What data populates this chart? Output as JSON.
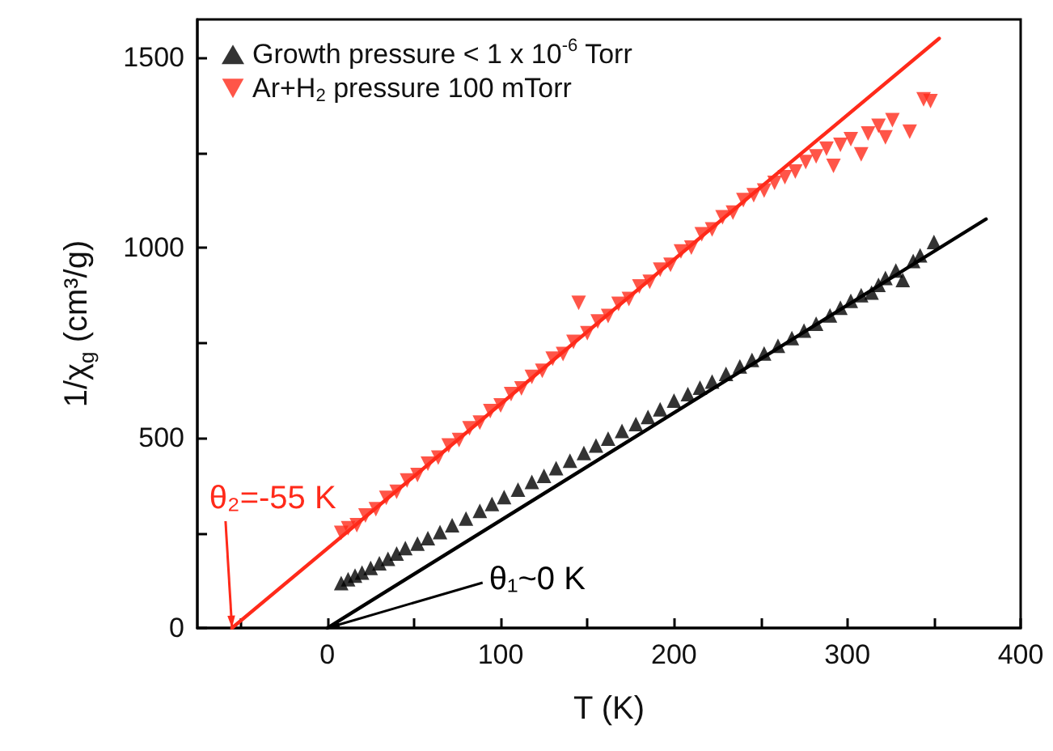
{
  "chart_data": {
    "type": "scatter",
    "xlabel": "T (K)",
    "ylabel": "1/χ$_{g}$ (cm³/g)",
    "xlim": [
      -75,
      400
    ],
    "ylim": [
      0,
      1600
    ],
    "xticks": [
      {
        "value": -50,
        "label": null
      },
      0,
      {
        "value": 50,
        "label": null
      },
      100,
      {
        "value": 150,
        "label": null
      },
      200,
      {
        "value": 250,
        "label": null
      },
      300,
      {
        "value": 350,
        "label": null
      },
      400
    ],
    "yticks": [
      0,
      {
        "value": 250,
        "label": null
      },
      500,
      {
        "value": 750,
        "label": null
      },
      1000,
      {
        "value": 1250,
        "label": null
      },
      1500
    ],
    "legend": "top left",
    "grid": false,
    "marker": "triangle",
    "series": [
      {
        "name": "Growth pressure < 1 x 10$^{-6}$ Torr",
        "color": "#000000",
        "x": [
          8,
          12,
          16,
          20,
          25,
          30,
          35,
          40,
          45,
          52,
          58,
          65,
          72,
          80,
          88,
          95,
          102,
          110,
          118,
          125,
          132,
          140,
          148,
          155,
          162,
          170,
          178,
          185,
          192,
          200,
          208,
          215,
          222,
          230,
          238,
          245,
          252,
          260,
          268,
          275,
          282,
          290,
          296,
          302,
          308,
          314,
          318,
          322,
          328,
          332,
          338,
          342,
          350
        ],
        "values": [
          118,
          128,
          138,
          146,
          158,
          170,
          182,
          196,
          210,
          222,
          236,
          252,
          270,
          288,
          308,
          326,
          344,
          364,
          384,
          400,
          420,
          440,
          460,
          480,
          498,
          518,
          536,
          555,
          575,
          598,
          615,
          632,
          648,
          668,
          688,
          705,
          722,
          742,
          762,
          782,
          800,
          822,
          842,
          860,
          875,
          882,
          902,
          920,
          940,
          915,
          965,
          980,
          1015
        ]
      },
      {
        "name": "Ar+H$_{2}$ pressure 100 mTorr",
        "color": "#ff2a1a",
        "x": [
          8,
          12,
          17,
          22,
          28,
          34,
          40,
          46,
          52,
          58,
          64,
          70,
          76,
          82,
          88,
          94,
          100,
          106,
          112,
          118,
          124,
          130,
          136,
          142,
          145,
          150,
          156,
          162,
          168,
          174,
          180,
          186,
          192,
          198,
          204,
          210,
          216,
          222,
          228,
          234,
          240,
          246,
          252,
          258,
          264,
          270,
          276,
          282,
          288,
          292,
          296,
          302,
          308,
          312,
          318,
          322,
          326,
          336,
          344,
          348
        ],
        "values": [
          250,
          262,
          270,
          296,
          312,
          342,
          358,
          388,
          402,
          432,
          448,
          480,
          494,
          525,
          540,
          570,
          585,
          615,
          630,
          660,
          676,
          708,
          720,
          752,
          855,
          775,
          806,
          820,
          852,
          865,
          898,
          910,
          942,
          955,
          990,
          1000,
          1035,
          1048,
          1080,
          1092,
          1125,
          1138,
          1150,
          1170,
          1185,
          1200,
          1225,
          1240,
          1260,
          1215,
          1270,
          1285,
          1245,
          1300,
          1320,
          1290,
          1335,
          1305,
          1390,
          1385
        ]
      },
      {
        "type": "line",
        "color": "#000000",
        "marker": "none",
        "x": [
          0,
          380
        ],
        "values": [
          0,
          1075
        ]
      },
      {
        "type": "line",
        "color": "#ff2a1a",
        "marker": "none",
        "x": [
          -55,
          353
        ],
        "values": [
          0,
          1550
        ]
      }
    ],
    "annotations": [
      {
        "text": "θ₁~0 K",
        "x": 0,
        "y": 0
      },
      {
        "text": "θ₂=-55 K",
        "x": -55,
        "y": 0
      }
    ]
  }
}
